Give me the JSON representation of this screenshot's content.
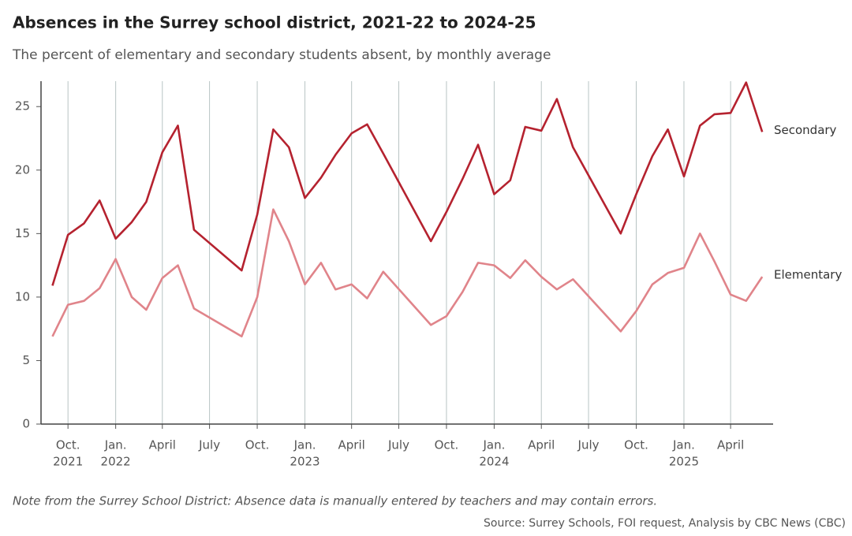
{
  "chart_data": {
    "type": "line",
    "title": "Absences in the Surrey school district, 2021-22 to 2024-25",
    "subtitle": "The percent of elementary and secondary students absent, by monthly average",
    "note": "Note from the Surrey School District: Absence data is manually entered by teachers and may contain errors.",
    "source": "Source: Surrey Schools, FOI request, Analysis by CBC News (CBC)",
    "x": [
      "2021-09",
      "2021-10",
      "2021-11",
      "2021-12",
      "2022-01",
      "2022-02",
      "2022-03",
      "2022-04",
      "2022-05",
      "2022-06",
      "2022-09",
      "2022-10",
      "2022-11",
      "2022-12",
      "2023-01",
      "2023-02",
      "2023-03",
      "2023-04",
      "2023-05",
      "2023-06",
      "2023-09",
      "2023-10",
      "2023-11",
      "2023-12",
      "2024-01",
      "2024-02",
      "2024-03",
      "2024-04",
      "2024-05",
      "2024-06",
      "2024-09",
      "2024-10",
      "2024-11",
      "2024-12",
      "2025-01",
      "2025-02",
      "2025-03",
      "2025-04",
      "2025-05",
      "2025-06"
    ],
    "series": [
      {
        "name": "Secondary",
        "color": "#b5222f",
        "values": [
          10.9,
          14.9,
          15.8,
          17.6,
          14.6,
          15.9,
          17.5,
          21.4,
          23.5,
          15.3,
          12.1,
          16.5,
          23.2,
          21.8,
          17.8,
          19.4,
          21.2,
          22.9,
          23.6,
          21.3,
          14.4,
          16.7,
          19.3,
          22.0,
          18.1,
          19.2,
          23.4,
          23.1,
          25.6,
          21.8,
          15.0,
          18.1,
          21.1,
          23.2,
          19.5,
          23.5,
          24.4,
          24.5,
          26.9,
          23.0
        ]
      },
      {
        "name": "Elementary",
        "color": "#e0848a",
        "values": [
          6.9,
          9.4,
          9.7,
          10.7,
          13.0,
          10.0,
          9.0,
          11.5,
          12.5,
          9.1,
          6.9,
          10.0,
          16.9,
          14.4,
          11.0,
          12.7,
          10.6,
          11.0,
          9.9,
          12.0,
          7.8,
          8.5,
          10.4,
          12.7,
          12.5,
          11.5,
          12.9,
          11.6,
          10.6,
          11.4,
          7.3,
          8.9,
          11.0,
          11.9,
          12.3,
          15.0,
          12.8,
          10.2,
          9.7,
          11.6
        ]
      }
    ],
    "xlim": [
      "2021-08-10",
      "2025-06-22"
    ],
    "xticks": [
      {
        "value": "2021-10",
        "label": "Oct."
      },
      {
        "value": "2022-01",
        "label": "Jan."
      },
      {
        "value": "2022-04",
        "label": "April"
      },
      {
        "value": "2022-07",
        "label": "July"
      },
      {
        "value": "2022-10",
        "label": "Oct."
      },
      {
        "value": "2023-01",
        "label": "Jan."
      },
      {
        "value": "2023-04",
        "label": "April"
      },
      {
        "value": "2023-07",
        "label": "July"
      },
      {
        "value": "2023-10",
        "label": "Oct."
      },
      {
        "value": "2024-01",
        "label": "Jan."
      },
      {
        "value": "2024-04",
        "label": "April"
      },
      {
        "value": "2024-07",
        "label": "July"
      },
      {
        "value": "2024-10",
        "label": "Oct."
      },
      {
        "value": "2025-01",
        "label": "Jan."
      },
      {
        "value": "2025-04",
        "label": "April"
      }
    ],
    "xtick_years": [
      {
        "value": "2021-10",
        "label": "2021"
      },
      {
        "value": "2022-01",
        "label": "2022"
      },
      {
        "value": "2023-01",
        "label": "2023"
      },
      {
        "value": "2024-01",
        "label": "2024"
      },
      {
        "value": "2025-01",
        "label": "2025"
      }
    ],
    "ylim": [
      0,
      27
    ],
    "yticks": [
      0,
      5,
      10,
      15,
      20,
      25
    ],
    "vertical_grid": true
  }
}
